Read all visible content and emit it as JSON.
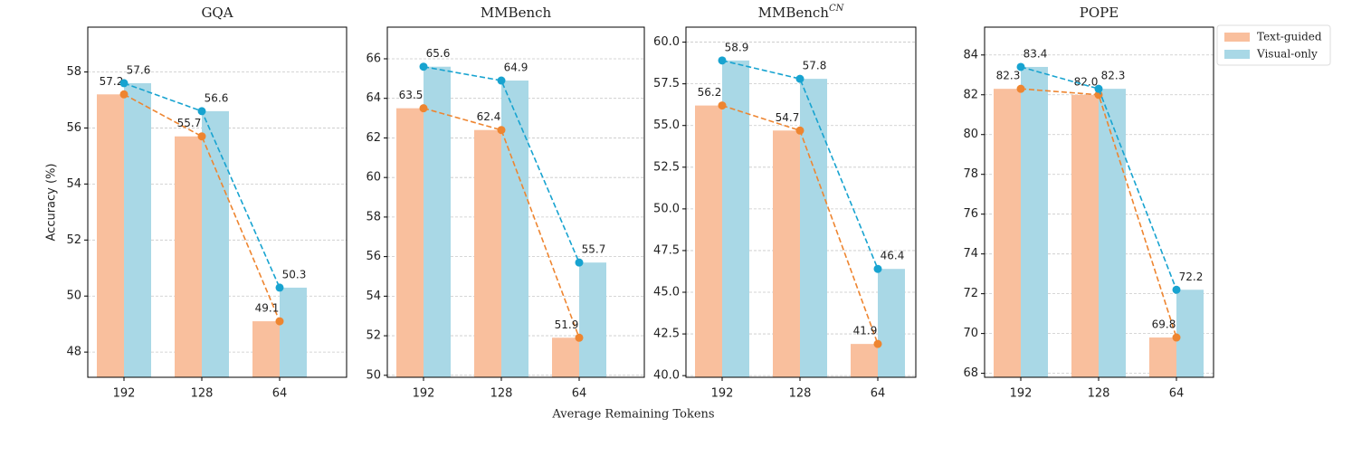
{
  "chart_data": [
    {
      "type": "bar_line",
      "title": "GQA",
      "ylabel": "Accuracy (%)",
      "categories": [
        "192",
        "128",
        "64"
      ],
      "series": [
        {
          "name": "Text-guided",
          "color": "#f9bf9d",
          "line_color": "#ee8530",
          "values": [
            57.2,
            55.7,
            49.1
          ],
          "value_labels": [
            "57.2",
            "55.7",
            "49.1"
          ]
        },
        {
          "name": "Visual-only",
          "color": "#a9d8e6",
          "line_color": "#17a3d0",
          "values": [
            57.6,
            56.6,
            50.3
          ],
          "value_labels": [
            "57.6",
            "56.6",
            "50.3"
          ]
        }
      ],
      "ylim": [
        47.1,
        59.6
      ],
      "yticks": [
        48,
        50,
        52,
        54,
        56,
        58
      ],
      "grid": true
    },
    {
      "type": "bar_line",
      "title": "MMBench",
      "categories": [
        "192",
        "128",
        "64"
      ],
      "series": [
        {
          "color": "#f9bf9d",
          "line_color": "#ee8530",
          "values": [
            63.5,
            62.4,
            51.9
          ],
          "value_labels": [
            "63.5",
            "62.4",
            "51.9"
          ]
        },
        {
          "color": "#a9d8e6",
          "line_color": "#17a3d0",
          "values": [
            65.6,
            64.9,
            55.7
          ],
          "value_labels": [
            "65.6",
            "64.9",
            "55.7"
          ]
        }
      ],
      "ylim": [
        49.9,
        67.6
      ],
      "yticks": [
        50,
        52,
        54,
        56,
        58,
        60,
        62,
        64,
        66
      ],
      "grid": true
    },
    {
      "type": "bar_line",
      "title": "MMBench",
      "title_superscript": "CN",
      "categories": [
        "192",
        "128",
        "64"
      ],
      "series": [
        {
          "color": "#f9bf9d",
          "line_color": "#ee8530",
          "values": [
            56.2,
            54.7,
            41.9
          ],
          "value_labels": [
            "56.2",
            "54.7",
            "41.9"
          ]
        },
        {
          "color": "#a9d8e6",
          "line_color": "#17a3d0",
          "values": [
            58.9,
            57.8,
            46.4
          ],
          "value_labels": [
            "58.9",
            "57.8",
            "46.4"
          ]
        }
      ],
      "ylim": [
        39.9,
        60.9
      ],
      "yticks": [
        {
          "value": 40,
          "label": "40.0"
        },
        {
          "value": 42.5,
          "label": "42.5"
        },
        {
          "value": 45,
          "label": "45.0"
        },
        {
          "value": 47.5,
          "label": "47.5"
        },
        {
          "value": 50,
          "label": "50.0"
        },
        {
          "value": 52.5,
          "label": "52.5"
        },
        {
          "value": 55,
          "label": "55.0"
        },
        {
          "value": 57.5,
          "label": "57.5"
        },
        {
          "value": 60,
          "label": "60.0"
        }
      ],
      "grid": true
    },
    {
      "type": "bar_line",
      "title": "POPE",
      "categories": [
        "192",
        "128",
        "64"
      ],
      "series": [
        {
          "color": "#f9bf9d",
          "line_color": "#ee8530",
          "values": [
            82.3,
            82.0,
            69.8
          ],
          "value_labels": [
            "82.3",
            "82.0",
            "69.8"
          ]
        },
        {
          "color": "#a9d8e6",
          "line_color": "#17a3d0",
          "values": [
            83.4,
            82.3,
            72.2
          ],
          "value_labels": [
            "83.4",
            "82.3",
            "72.2"
          ]
        }
      ],
      "ylim": [
        67.8,
        85.4
      ],
      "yticks": [
        68,
        70,
        72,
        74,
        76,
        78,
        80,
        82,
        84
      ],
      "grid": true
    }
  ],
  "figure": {
    "xlabel": "Average Remaining Tokens",
    "legend": "upper right"
  }
}
